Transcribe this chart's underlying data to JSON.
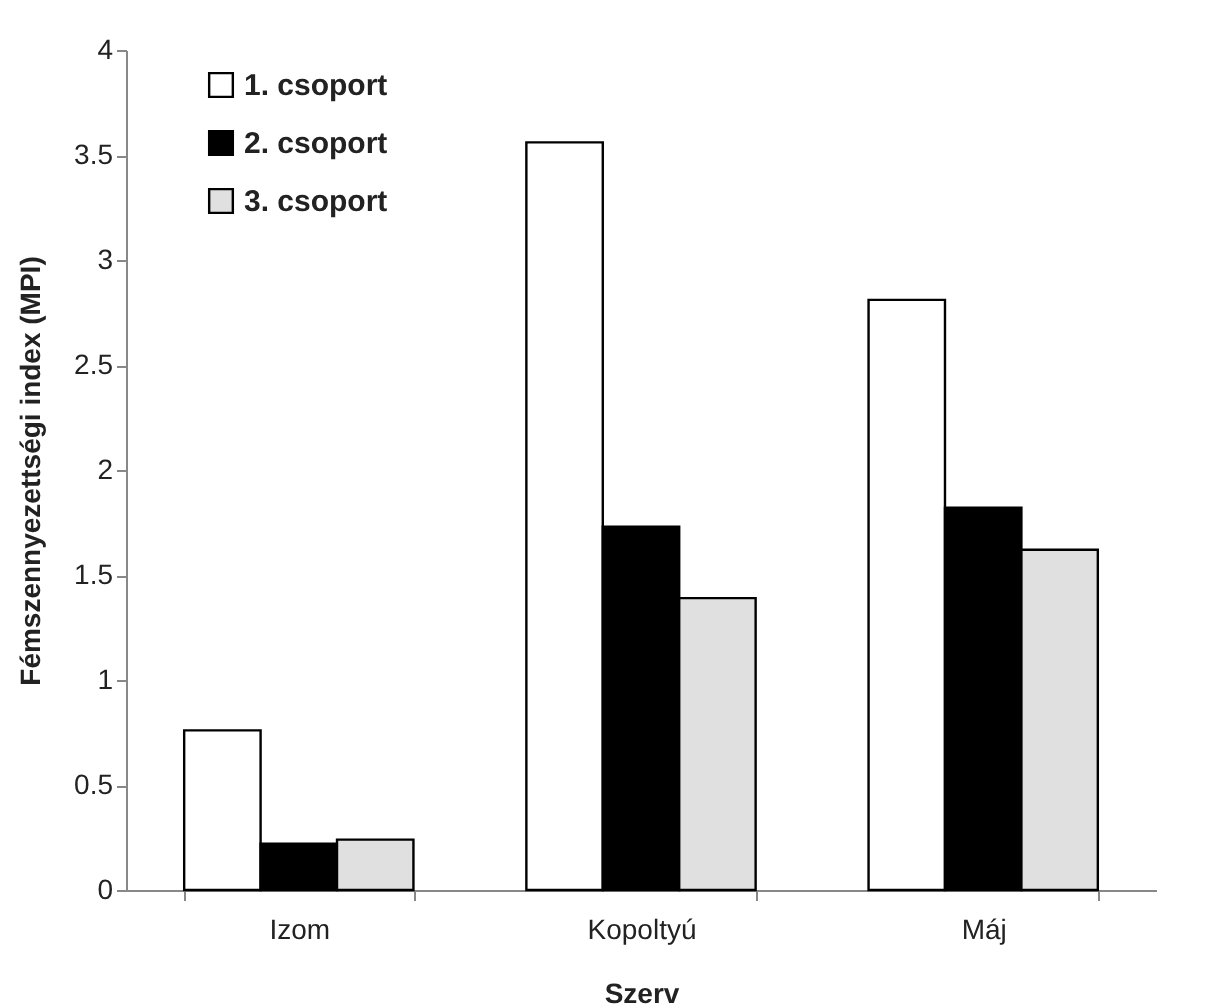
{
  "chart_data": {
    "type": "bar",
    "xlabel": "Szerv",
    "ylabel": "Fémszennyezettségi index (MPI)",
    "categories": [
      "Izom",
      "Kopoltyú",
      "Máj"
    ],
    "series": [
      {
        "name": "1. csoport",
        "color": "#ffffff",
        "values": [
          0.76,
          3.56,
          2.81
        ]
      },
      {
        "name": "2. csoport",
        "color": "#000000",
        "values": [
          0.22,
          1.73,
          1.82
        ]
      },
      {
        "name": "3. csoport",
        "color": "#e0e0e0",
        "values": [
          0.24,
          1.39,
          1.62
        ]
      }
    ],
    "ylim": [
      0,
      4
    ],
    "yticks": [
      0,
      0.5,
      1,
      1.5,
      2,
      2.5,
      3,
      3.5,
      4
    ],
    "grid": false,
    "legend": "top left"
  }
}
